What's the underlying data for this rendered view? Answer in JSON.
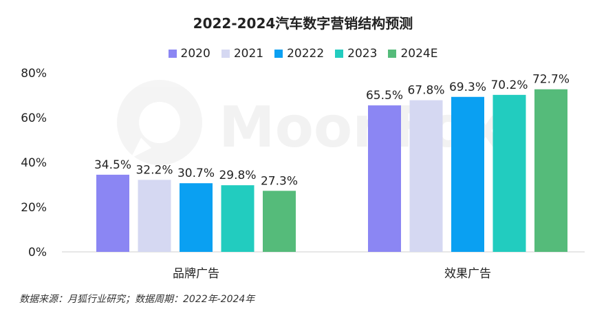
{
  "chart_data": {
    "type": "bar",
    "title": "2022-2024汽车数字营销结构预测",
    "categories": [
      "品牌广告",
      "效果广告"
    ],
    "series": [
      {
        "name": "2020",
        "values": [
          34.5,
          65.5
        ],
        "color": "#8b86f3"
      },
      {
        "name": "2021",
        "values": [
          32.2,
          67.8
        ],
        "color": "#d5d8f2"
      },
      {
        "name": "20222",
        "values": [
          30.7,
          69.3
        ],
        "color": "#0aa0f2"
      },
      {
        "name": "2023",
        "values": [
          29.8,
          70.2
        ],
        "color": "#22ccbf"
      },
      {
        "name": "2024E",
        "values": [
          27.3,
          72.7
        ],
        "color": "#55bb7a"
      }
    ],
    "value_labels": [
      [
        "34.5%",
        "65.5%"
      ],
      [
        "32.2%",
        "67.8%"
      ],
      [
        "30.7%",
        "69.3%"
      ],
      [
        "29.8%",
        "70.2%"
      ],
      [
        "27.3%",
        "72.7%"
      ]
    ],
    "y_ticks": [
      "0%",
      "20%",
      "40%",
      "60%",
      "80%"
    ],
    "y_tick_values": [
      0,
      20,
      40,
      60,
      80
    ],
    "ylim": [
      0,
      80
    ],
    "legend_position": "top",
    "grid": false
  },
  "watermark": "MoonFox",
  "source": "数据来源：月狐行业研究；数据周期：2022年-2024年"
}
